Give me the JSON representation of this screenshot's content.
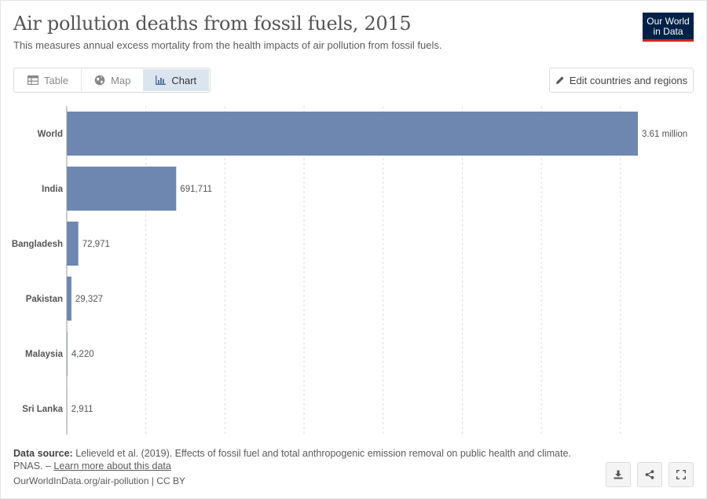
{
  "header": {
    "title": "Air pollution deaths from fossil fuels, 2015",
    "subtitle": "This measures annual excess mortality from the health impacts of air pollution from fossil fuels.",
    "logo_line1": "Our World",
    "logo_line2": "in Data"
  },
  "tabs": [
    {
      "label": "Table",
      "icon": "table-icon",
      "active": false
    },
    {
      "label": "Map",
      "icon": "globe-icon",
      "active": false
    },
    {
      "label": "Chart",
      "icon": "chart-icon",
      "active": true
    }
  ],
  "edit_button": {
    "label": "Edit countries and regions",
    "icon": "pencil-icon"
  },
  "chart_data": {
    "type": "bar",
    "orientation": "horizontal",
    "title": "Air pollution deaths from fossil fuels, 2015",
    "categories": [
      "World",
      "India",
      "Bangladesh",
      "Pakistan",
      "Malaysia",
      "Sri Lanka"
    ],
    "values": [
      3610000,
      691711,
      72971,
      29327,
      4220,
      2911
    ],
    "value_labels": [
      "3.61 million",
      "691,711",
      "72,971",
      "29,327",
      "4,220",
      "2,911"
    ],
    "xlim": [
      0,
      3610000
    ],
    "grid": true,
    "bar_color": "#6d87b0"
  },
  "footer": {
    "source_label": "Data source:",
    "source_text": " Lelieveld et al. (2019). Effects of fossil fuel and total anthropogenic emission removal on public health and climate. PNAS. – ",
    "learn_more": "Learn more about this data",
    "url": "OurWorldInData.org/air-pollution | CC BY"
  },
  "actions": [
    {
      "name": "download-icon"
    },
    {
      "name": "share-icon"
    },
    {
      "name": "fullscreen-icon"
    }
  ]
}
